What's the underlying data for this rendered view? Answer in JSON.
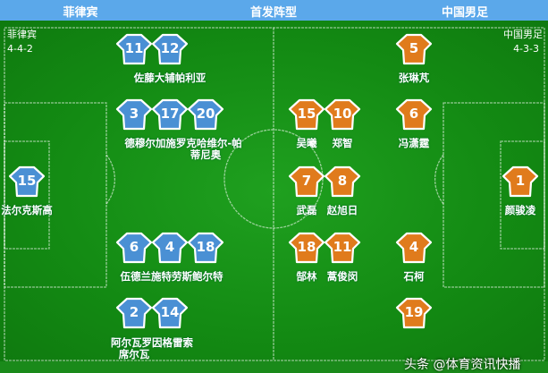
{
  "header": {
    "left": "菲律宾",
    "center": "首发阵型",
    "right": "中国男足"
  },
  "colors": {
    "header": "#5ba8ea",
    "home_jersey": "#4a90d4",
    "away_jersey": "#e07b1c",
    "pitch": "#138a13"
  },
  "home": {
    "name": "菲律宾",
    "formation": "4-4-2",
    "players": [
      {
        "n": "11"
      },
      {
        "n": "12"
      },
      {
        "n": "3"
      },
      {
        "n": "17"
      },
      {
        "n": "20"
      },
      {
        "n": "15"
      },
      {
        "n": "6"
      },
      {
        "n": "4"
      },
      {
        "n": "18"
      },
      {
        "n": "2"
      },
      {
        "n": "14"
      }
    ],
    "labels": [
      "佐藤大辅帕利亚",
      "德穆尔加施罗克哈维尔-帕",
      "蒂尼奥",
      "法尔克斯高",
      "伍德兰施特劳斯鲍尔特",
      "阿尔瓦罗因格雷索",
      "席尔瓦"
    ]
  },
  "away": {
    "name": "中国男足",
    "formation": "4-3-3",
    "players": [
      {
        "n": "5",
        "name": "张琳芃"
      },
      {
        "n": "15",
        "name": "吴曦"
      },
      {
        "n": "10",
        "name": "郑智"
      },
      {
        "n": "6",
        "name": "冯潇霆"
      },
      {
        "n": "7",
        "name": "武磊"
      },
      {
        "n": "8",
        "name": "赵旭日"
      },
      {
        "n": "1",
        "name": "颜骏凌"
      },
      {
        "n": "18",
        "name": "郜林"
      },
      {
        "n": "11",
        "name": "蒿俊闵"
      },
      {
        "n": "4",
        "name": "石柯"
      },
      {
        "n": "19",
        "name": ""
      }
    ]
  },
  "watermark": "头条 @体育资讯快播"
}
